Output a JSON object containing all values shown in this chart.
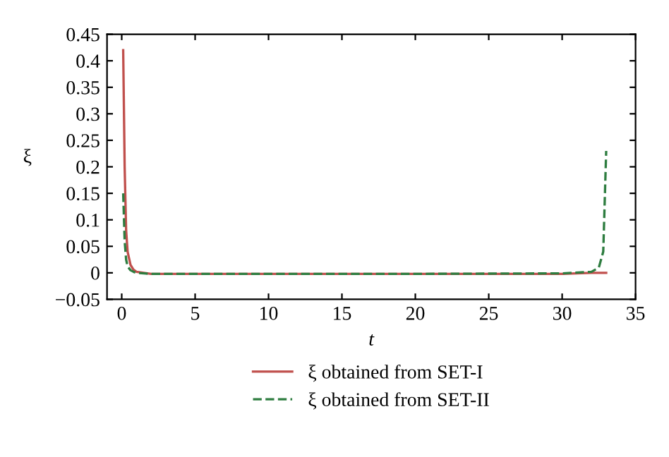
{
  "chart_data": {
    "type": "line",
    "xlabel": "t",
    "ylabel": "ξ",
    "xlim": [
      -1,
      35
    ],
    "ylim": [
      -0.05,
      0.45
    ],
    "xticks": [
      0,
      5,
      10,
      15,
      20,
      25,
      30,
      35
    ],
    "yticks": [
      -0.05,
      0,
      0.05,
      0.1,
      0.15,
      0.2,
      0.25,
      0.3,
      0.35,
      0.4,
      0.45
    ],
    "grid": false,
    "legend": "bottom",
    "marker": "none",
    "series": [
      {
        "name": "ξ obtained from SET-I",
        "color": "#c0504d",
        "line_style": "solid",
        "x": [
          0.1,
          0.2,
          0.3,
          0.4,
          0.6,
          0.8,
          1.0,
          1.5,
          2,
          5,
          10,
          20,
          30,
          32,
          33
        ],
        "values": [
          0.42,
          0.2,
          0.08,
          0.04,
          0.015,
          0.006,
          0.002,
          0,
          -0.002,
          -0.002,
          -0.002,
          -0.002,
          -0.002,
          0,
          0
        ]
      },
      {
        "name": "ξ obtained from SET-II",
        "color": "#2e7d40",
        "line_style": "dashed",
        "x": [
          0.1,
          0.2,
          0.3,
          0.4,
          0.6,
          0.8,
          1.0,
          1.5,
          2,
          5,
          10,
          20,
          30,
          32,
          32.5,
          32.8,
          33
        ],
        "values": [
          0.15,
          0.06,
          0.025,
          0.012,
          0.005,
          0.002,
          0,
          -0.001,
          -0.002,
          -0.002,
          -0.002,
          -0.002,
          -0.001,
          0.002,
          0.01,
          0.04,
          0.23
        ]
      }
    ]
  }
}
